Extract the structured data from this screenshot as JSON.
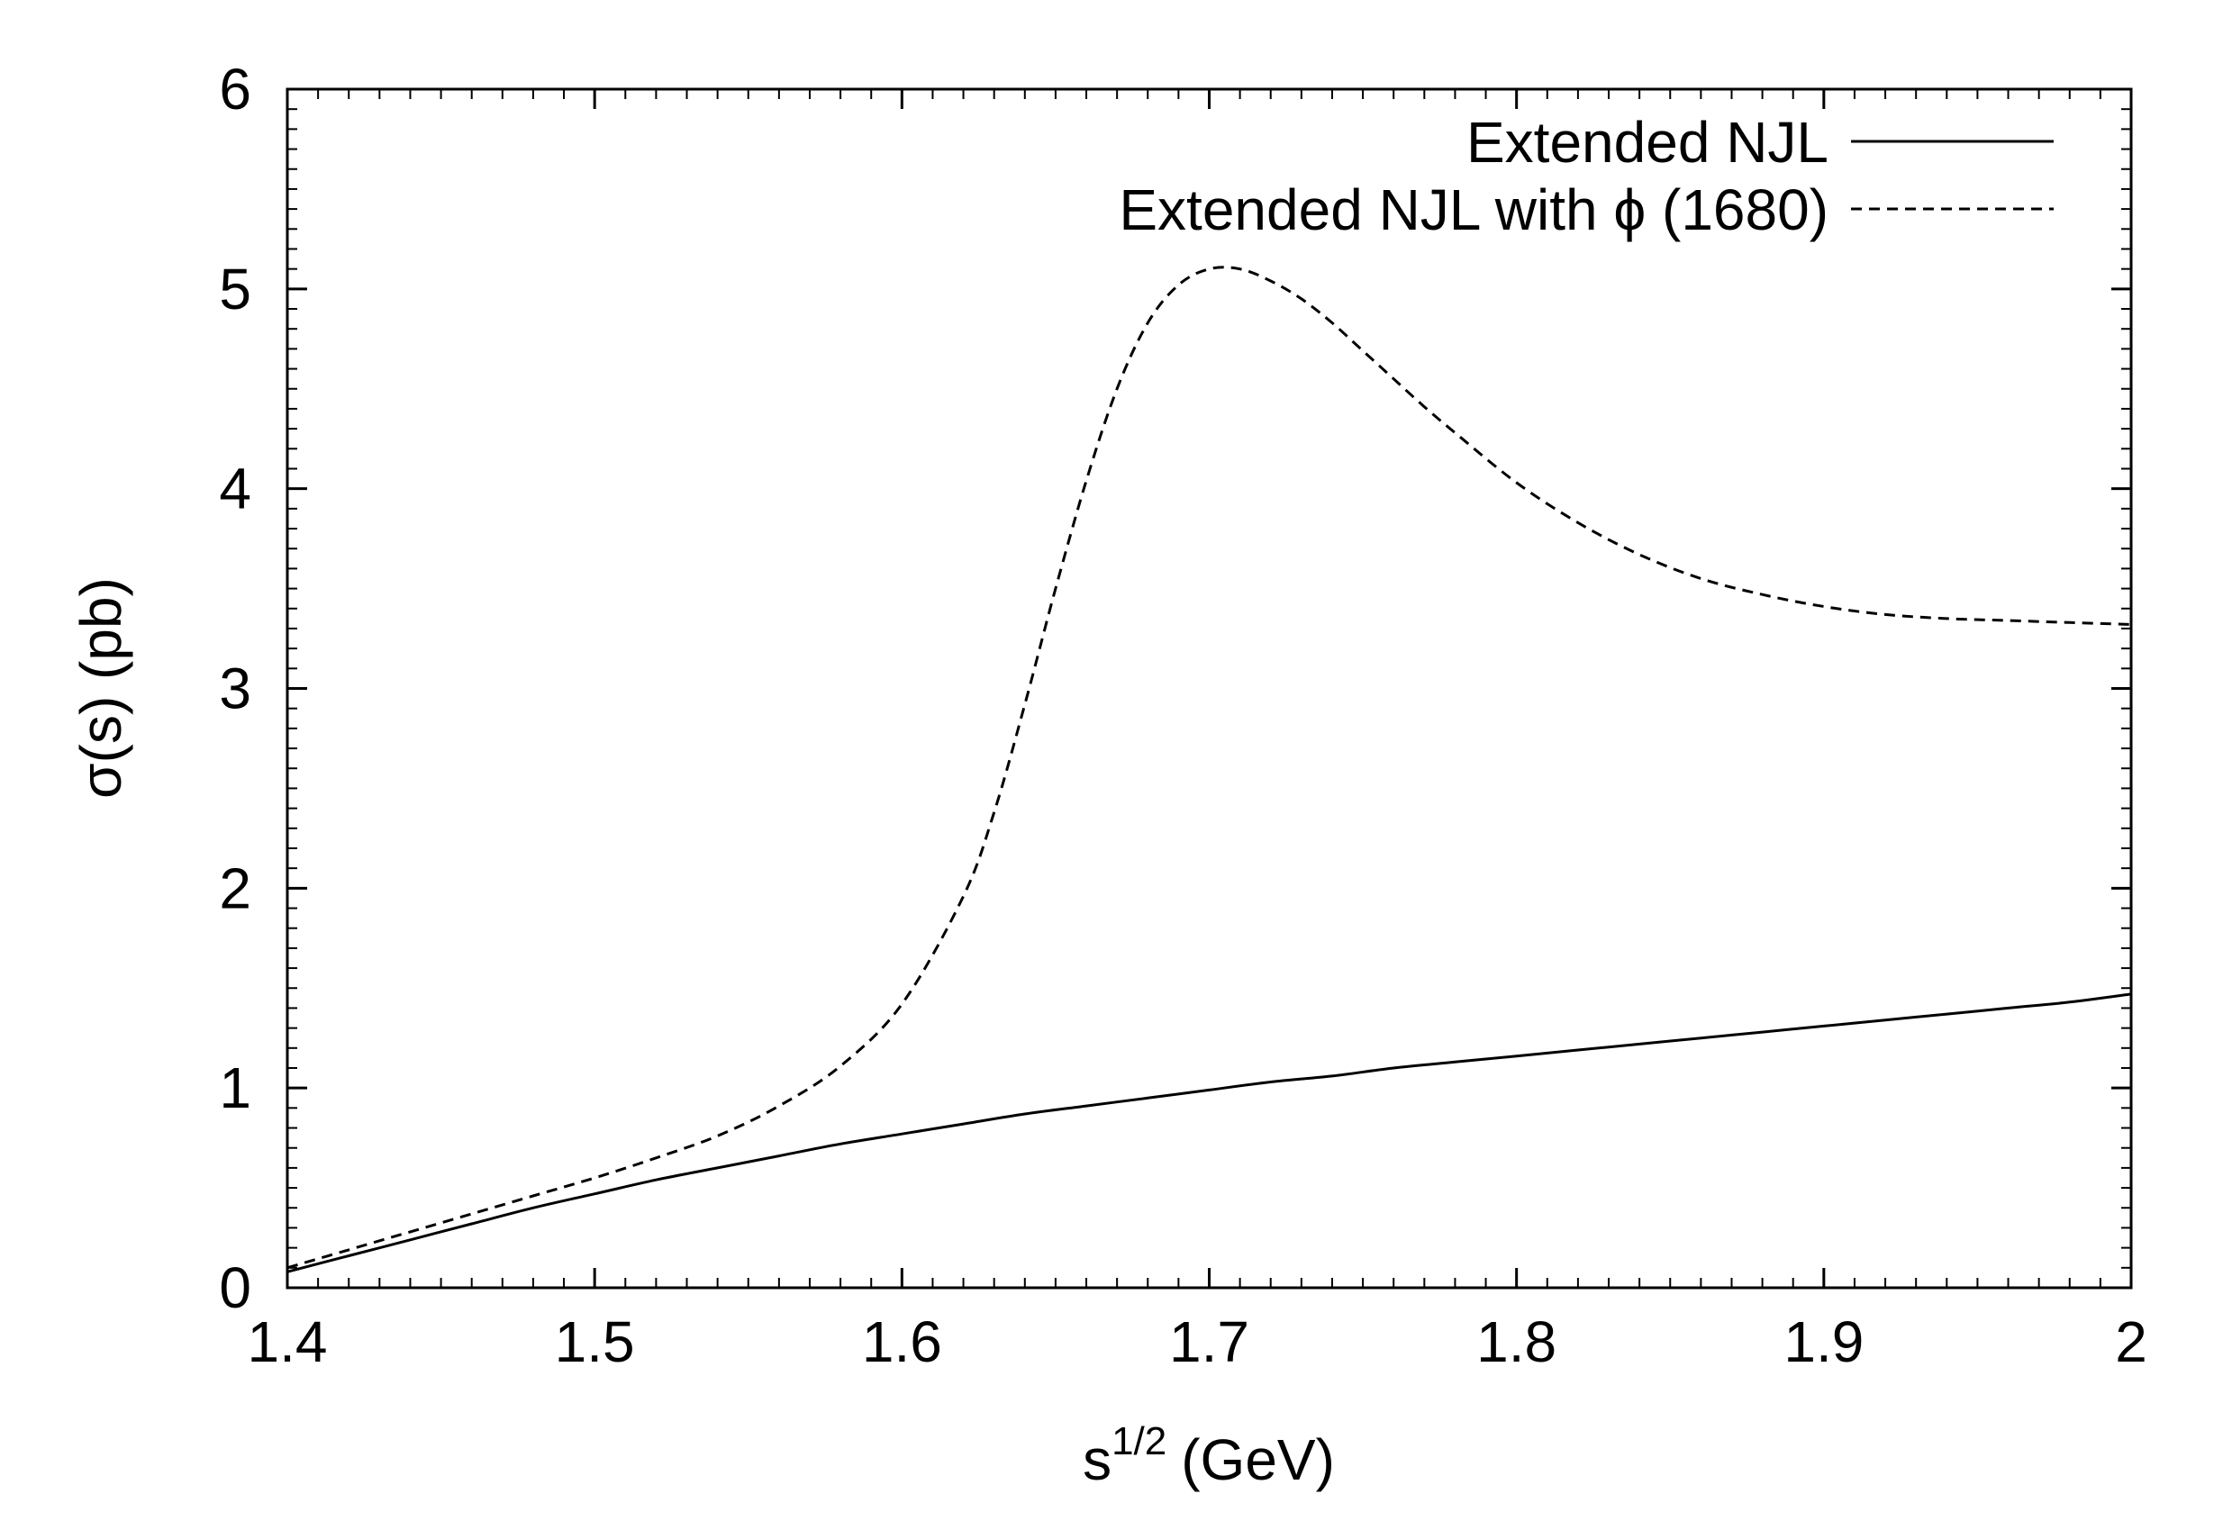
{
  "chart_data": {
    "type": "line",
    "title": "",
    "xlabel": "s",
    "xlabel_superscript": "1/2",
    "xlabel_suffix": "(GeV)",
    "ylabel": "σ(s) (pb)",
    "xlim": [
      1.4,
      2.0
    ],
    "ylim": [
      0,
      6
    ],
    "grid": false,
    "legend_position": "top-right",
    "x_ticks": [
      1.4,
      1.5,
      1.6,
      1.7,
      1.8,
      1.9,
      2.0
    ],
    "x_tick_labels": [
      "1.4",
      "1.5",
      "1.6",
      "1.7",
      "1.8",
      "1.9",
      "2"
    ],
    "y_ticks": [
      0,
      1,
      2,
      3,
      4,
      5,
      6
    ],
    "y_tick_labels": [
      "0",
      "1",
      "2",
      "3",
      "4",
      "5",
      "6"
    ],
    "series": [
      {
        "name": "Extended NJL",
        "style": "solid",
        "x": [
          1.4,
          1.42,
          1.44,
          1.46,
          1.48,
          1.5,
          1.52,
          1.54,
          1.56,
          1.58,
          1.6,
          1.62,
          1.64,
          1.66,
          1.68,
          1.7,
          1.72,
          1.74,
          1.76,
          1.78,
          1.8,
          1.82,
          1.84,
          1.86,
          1.88,
          1.9,
          1.92,
          1.94,
          1.96,
          1.98,
          2.0
        ],
        "values": [
          0.08,
          0.16,
          0.24,
          0.32,
          0.4,
          0.47,
          0.54,
          0.6,
          0.66,
          0.72,
          0.77,
          0.82,
          0.87,
          0.91,
          0.95,
          0.99,
          1.03,
          1.06,
          1.1,
          1.13,
          1.16,
          1.19,
          1.22,
          1.25,
          1.28,
          1.31,
          1.34,
          1.37,
          1.4,
          1.43,
          1.47
        ]
      },
      {
        "name": "Extended NJL with ϕ (1680)",
        "style": "dashed",
        "x": [
          1.4,
          1.42,
          1.44,
          1.46,
          1.48,
          1.5,
          1.52,
          1.54,
          1.56,
          1.58,
          1.6,
          1.62,
          1.63,
          1.64,
          1.65,
          1.66,
          1.67,
          1.68,
          1.69,
          1.7,
          1.71,
          1.72,
          1.73,
          1.74,
          1.75,
          1.76,
          1.77,
          1.78,
          1.8,
          1.82,
          1.84,
          1.86,
          1.88,
          1.9,
          1.92,
          1.94,
          1.96,
          1.98,
          2.0
        ],
        "values": [
          0.1,
          0.19,
          0.28,
          0.37,
          0.46,
          0.55,
          0.65,
          0.76,
          0.91,
          1.11,
          1.42,
          1.96,
          2.38,
          2.92,
          3.5,
          4.04,
          4.5,
          4.83,
          5.02,
          5.1,
          5.1,
          5.04,
          4.95,
          4.83,
          4.69,
          4.55,
          4.41,
          4.28,
          4.03,
          3.83,
          3.67,
          3.55,
          3.47,
          3.41,
          3.37,
          3.35,
          3.34,
          3.33,
          3.32
        ]
      }
    ]
  }
}
